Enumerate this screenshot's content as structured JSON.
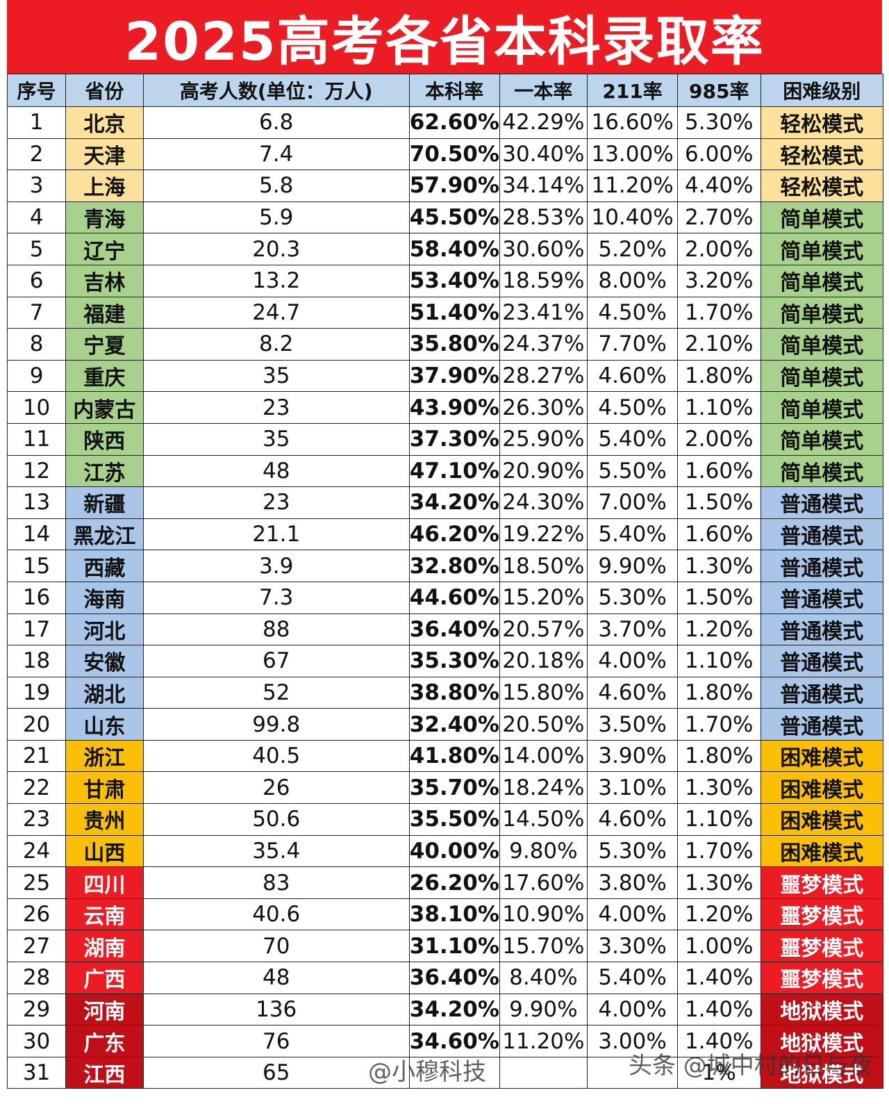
{
  "title": "2025高考各省本科录取率",
  "headers": [
    "序号",
    "省份",
    "高考人数(单位：万人)",
    "本科率",
    "一本率",
    "211率",
    "985率",
    "困难级别"
  ],
  "rows": [
    {
      "no": "1",
      "prov": "北京",
      "num": "6.8",
      "bk": "62.60%",
      "yb": "42.29%",
      "r211": "16.60%",
      "r985": "5.30%",
      "level": "轻松模式",
      "cls": "easy"
    },
    {
      "no": "2",
      "prov": "天津",
      "num": "7.4",
      "bk": "70.50%",
      "yb": "30.40%",
      "r211": "13.00%",
      "r985": "6.00%",
      "level": "轻松模式",
      "cls": "easy"
    },
    {
      "no": "3",
      "prov": "上海",
      "num": "5.8",
      "bk": "57.90%",
      "yb": "34.14%",
      "r211": "11.20%",
      "r985": "4.40%",
      "level": "轻松模式",
      "cls": "easy"
    },
    {
      "no": "4",
      "prov": "青海",
      "num": "5.9",
      "bk": "45.50%",
      "yb": "28.53%",
      "r211": "10.40%",
      "r985": "2.70%",
      "level": "简单模式",
      "cls": "simple"
    },
    {
      "no": "5",
      "prov": "辽宁",
      "num": "20.3",
      "bk": "58.40%",
      "yb": "30.60%",
      "r211": "5.20%",
      "r985": "2.00%",
      "level": "简单模式",
      "cls": "simple"
    },
    {
      "no": "6",
      "prov": "吉林",
      "num": "13.2",
      "bk": "53.40%",
      "yb": "18.59%",
      "r211": "8.00%",
      "r985": "3.20%",
      "level": "简单模式",
      "cls": "simple"
    },
    {
      "no": "7",
      "prov": "福建",
      "num": "24.7",
      "bk": "51.40%",
      "yb": "23.41%",
      "r211": "4.50%",
      "r985": "1.70%",
      "level": "简单模式",
      "cls": "simple"
    },
    {
      "no": "8",
      "prov": "宁夏",
      "num": "8.2",
      "bk": "35.80%",
      "yb": "24.37%",
      "r211": "7.70%",
      "r985": "2.10%",
      "level": "简单模式",
      "cls": "simple"
    },
    {
      "no": "9",
      "prov": "重庆",
      "num": "35",
      "bk": "37.90%",
      "yb": "28.27%",
      "r211": "4.60%",
      "r985": "1.80%",
      "level": "简单模式",
      "cls": "simple"
    },
    {
      "no": "10",
      "prov": "内蒙古",
      "num": "23",
      "bk": "43.90%",
      "yb": "26.30%",
      "r211": "4.50%",
      "r985": "1.10%",
      "level": "简单模式",
      "cls": "simple"
    },
    {
      "no": "11",
      "prov": "陕西",
      "num": "35",
      "bk": "37.30%",
      "yb": "25.90%",
      "r211": "5.40%",
      "r985": "2.00%",
      "level": "简单模式",
      "cls": "simple"
    },
    {
      "no": "12",
      "prov": "江苏",
      "num": "48",
      "bk": "47.10%",
      "yb": "20.90%",
      "r211": "5.50%",
      "r985": "1.60%",
      "level": "简单模式",
      "cls": "simple"
    },
    {
      "no": "13",
      "prov": "新疆",
      "num": "23",
      "bk": "34.20%",
      "yb": "24.30%",
      "r211": "7.00%",
      "r985": "1.50%",
      "level": "普通模式",
      "cls": "normal"
    },
    {
      "no": "14",
      "prov": "黑龙江",
      "num": "21.1",
      "bk": "46.20%",
      "yb": "19.22%",
      "r211": "5.40%",
      "r985": "1.60%",
      "level": "普通模式",
      "cls": "normal"
    },
    {
      "no": "15",
      "prov": "西藏",
      "num": "3.9",
      "bk": "32.80%",
      "yb": "18.50%",
      "r211": "9.90%",
      "r985": "1.30%",
      "level": "普通模式",
      "cls": "normal"
    },
    {
      "no": "16",
      "prov": "海南",
      "num": "7.3",
      "bk": "44.60%",
      "yb": "15.20%",
      "r211": "5.30%",
      "r985": "1.50%",
      "level": "普通模式",
      "cls": "normal"
    },
    {
      "no": "17",
      "prov": "河北",
      "num": "88",
      "bk": "36.40%",
      "yb": "20.57%",
      "r211": "3.70%",
      "r985": "1.20%",
      "level": "普通模式",
      "cls": "normal"
    },
    {
      "no": "18",
      "prov": "安徽",
      "num": "67",
      "bk": "35.30%",
      "yb": "20.18%",
      "r211": "4.00%",
      "r985": "1.10%",
      "level": "普通模式",
      "cls": "normal"
    },
    {
      "no": "19",
      "prov": "湖北",
      "num": "52",
      "bk": "38.80%",
      "yb": "15.80%",
      "r211": "4.60%",
      "r985": "1.80%",
      "level": "普通模式",
      "cls": "normal"
    },
    {
      "no": "20",
      "prov": "山东",
      "num": "99.8",
      "bk": "32.40%",
      "yb": "20.50%",
      "r211": "3.50%",
      "r985": "1.70%",
      "level": "普通模式",
      "cls": "normal"
    },
    {
      "no": "21",
      "prov": "浙江",
      "num": "40.5",
      "bk": "41.80%",
      "yb": "14.00%",
      "r211": "3.90%",
      "r985": "1.80%",
      "level": "困难模式",
      "cls": "hard"
    },
    {
      "no": "22",
      "prov": "甘肃",
      "num": "26",
      "bk": "35.70%",
      "yb": "18.24%",
      "r211": "3.10%",
      "r985": "1.30%",
      "level": "困难模式",
      "cls": "hard"
    },
    {
      "no": "23",
      "prov": "贵州",
      "num": "50.6",
      "bk": "35.50%",
      "yb": "14.50%",
      "r211": "4.60%",
      "r985": "1.10%",
      "level": "困难模式",
      "cls": "hard"
    },
    {
      "no": "24",
      "prov": "山西",
      "num": "35.4",
      "bk": "40.00%",
      "yb": "9.80%",
      "r211": "5.30%",
      "r985": "1.70%",
      "level": "困难模式",
      "cls": "hard"
    },
    {
      "no": "25",
      "prov": "四川",
      "num": "83",
      "bk": "26.20%",
      "yb": "17.60%",
      "r211": "3.80%",
      "r985": "1.30%",
      "level": "噩梦模式",
      "cls": "night"
    },
    {
      "no": "26",
      "prov": "云南",
      "num": "40.6",
      "bk": "38.10%",
      "yb": "10.90%",
      "r211": "4.00%",
      "r985": "1.20%",
      "level": "噩梦模式",
      "cls": "night"
    },
    {
      "no": "27",
      "prov": "湖南",
      "num": "70",
      "bk": "31.10%",
      "yb": "15.70%",
      "r211": "3.30%",
      "r985": "1.00%",
      "level": "噩梦模式",
      "cls": "night"
    },
    {
      "no": "28",
      "prov": "广西",
      "num": "48",
      "bk": "36.40%",
      "yb": "8.40%",
      "r211": "5.40%",
      "r985": "1.40%",
      "level": "噩梦模式",
      "cls": "night"
    },
    {
      "no": "29",
      "prov": "河南",
      "num": "136",
      "bk": "34.20%",
      "yb": "9.90%",
      "r211": "4.00%",
      "r985": "1.40%",
      "level": "地狱模式",
      "cls": "hell"
    },
    {
      "no": "30",
      "prov": "广东",
      "num": "76",
      "bk": "34.60%",
      "yb": "11.20%",
      "r211": "3.00%",
      "r985": "1.40%",
      "level": "地狱模式",
      "cls": "hell"
    },
    {
      "no": "31",
      "prov": "江西",
      "num": "65",
      "bk": "",
      "yb": "",
      "r211": "",
      "r985": "1%",
      "level": "地狱模式",
      "cls": "hell"
    }
  ],
  "watermarks": [
    "@小穆科技",
    "头条 @城中村的日与夜"
  ]
}
